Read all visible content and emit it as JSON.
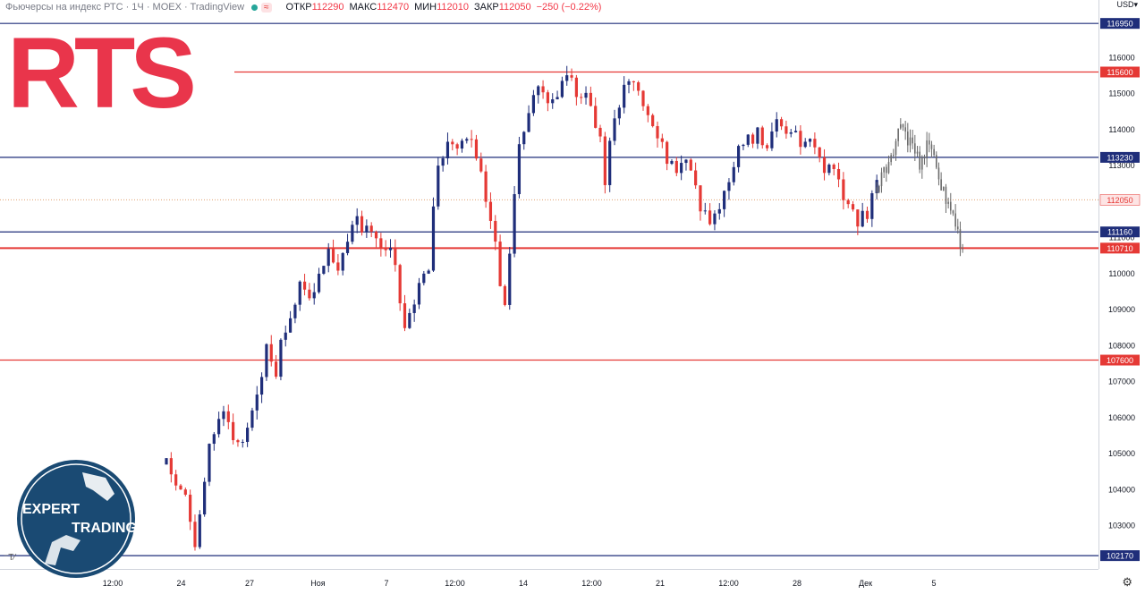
{
  "header": {
    "title": "Фьючерсы на индекс РТС · 1Ч · MOEX · TradingView",
    "wave": "≈",
    "open_label": "ОТКР",
    "open": "112290",
    "high_label": "МАКС",
    "high": "112470",
    "low_label": "МИН",
    "low": "112010",
    "close_label": "ЗАКР",
    "close": "112050",
    "change": "−250 (−0.22%)"
  },
  "currency": "USD▾",
  "logo_text": "RTS",
  "badge": {
    "top": "EXPERT",
    "bottom": "TRADING"
  },
  "colors": {
    "up": "#1f2e7a",
    "down": "#e53935",
    "blue_level": "#1f2e7a",
    "red_level": "#e53935",
    "forecast": "#6b6b6b",
    "logo": "#e8243c",
    "badge": "#1a4a73"
  },
  "chart_data": {
    "type": "candlestick",
    "title": "Фьючерсы на индекс РТС · 1Ч · MOEX",
    "ylim": [
      101800,
      117600
    ],
    "y_ticks": [
      103000,
      104000,
      105000,
      106000,
      107000,
      108000,
      109000,
      110000,
      111000,
      112000,
      113000,
      114000,
      115000,
      116000
    ],
    "x_ticks": [
      "12:00",
      "24",
      "27",
      "Ноя",
      "7",
      "12:00",
      "14",
      "12:00",
      "21",
      "12:00",
      "28",
      "Дек",
      "5"
    ],
    "levels": [
      {
        "value": 116950,
        "color": "blue"
      },
      {
        "value": 115600,
        "color": "red"
      },
      {
        "value": 113230,
        "color": "blue"
      },
      {
        "value": 111160,
        "color": "blue"
      },
      {
        "value": 110710,
        "color": "red"
      },
      {
        "value": 107600,
        "color": "red"
      },
      {
        "value": 102170,
        "color": "blue"
      }
    ],
    "last_price": 112050,
    "price_path": [
      [
        0,
        104700
      ],
      [
        4,
        103800
      ],
      [
        6,
        102300
      ],
      [
        7,
        103500
      ],
      [
        9,
        105300
      ],
      [
        12,
        106300
      ],
      [
        14,
        105400
      ],
      [
        16,
        105200
      ],
      [
        18,
        106200
      ],
      [
        21,
        107900
      ],
      [
        23,
        107300
      ],
      [
        24,
        108300
      ],
      [
        26,
        108700
      ],
      [
        28,
        109600
      ],
      [
        30,
        109200
      ],
      [
        32,
        110000
      ],
      [
        34,
        110600
      ],
      [
        36,
        110000
      ],
      [
        38,
        110900
      ],
      [
        40,
        111500
      ],
      [
        42,
        111200
      ],
      [
        44,
        111000
      ],
      [
        46,
        110700
      ],
      [
        48,
        110400
      ],
      [
        49,
        109200
      ],
      [
        50,
        108300
      ],
      [
        51,
        108800
      ],
      [
        53,
        109600
      ],
      [
        55,
        110200
      ],
      [
        56,
        112000
      ],
      [
        57,
        113200
      ],
      [
        59,
        113600
      ],
      [
        61,
        113400
      ],
      [
        63,
        113900
      ],
      [
        65,
        113300
      ],
      [
        67,
        112200
      ],
      [
        69,
        110900
      ],
      [
        70,
        109500
      ],
      [
        71,
        109300
      ],
      [
        72,
        110700
      ],
      [
        73,
        112300
      ],
      [
        74,
        113600
      ],
      [
        76,
        114500
      ],
      [
        78,
        115300
      ],
      [
        80,
        114700
      ],
      [
        82,
        115100
      ],
      [
        84,
        115500
      ],
      [
        86,
        115100
      ],
      [
        88,
        114900
      ],
      [
        90,
        114100
      ],
      [
        91,
        113700
      ],
      [
        92,
        112400
      ],
      [
        93,
        113500
      ],
      [
        95,
        114800
      ],
      [
        97,
        115400
      ],
      [
        99,
        114900
      ],
      [
        101,
        114300
      ],
      [
        103,
        113900
      ],
      [
        105,
        113100
      ],
      [
        107,
        112800
      ],
      [
        109,
        113300
      ],
      [
        111,
        112600
      ],
      [
        112,
        111900
      ],
      [
        114,
        111500
      ],
      [
        116,
        111800
      ],
      [
        118,
        112700
      ],
      [
        120,
        113500
      ],
      [
        122,
        113700
      ],
      [
        124,
        113900
      ],
      [
        126,
        113400
      ],
      [
        128,
        114400
      ],
      [
        130,
        113900
      ],
      [
        132,
        113800
      ],
      [
        134,
        113500
      ],
      [
        136,
        113600
      ],
      [
        138,
        112900
      ],
      [
        140,
        113100
      ],
      [
        141,
        112600
      ],
      [
        143,
        111900
      ],
      [
        145,
        111500
      ],
      [
        147,
        111700
      ],
      [
        149,
        112400
      ]
    ],
    "forecast_path": [
      [
        149,
        112400
      ],
      [
        152,
        113200
      ],
      [
        154,
        114200
      ],
      [
        156,
        113600
      ],
      [
        158,
        113100
      ],
      [
        160,
        113700
      ],
      [
        162,
        112700
      ],
      [
        164,
        111800
      ],
      [
        166,
        111200
      ],
      [
        167,
        110600
      ]
    ],
    "series": [
      {
        "name": "",
        "role": "price"
      },
      {
        "name": "",
        "role": "forecast"
      }
    ]
  }
}
